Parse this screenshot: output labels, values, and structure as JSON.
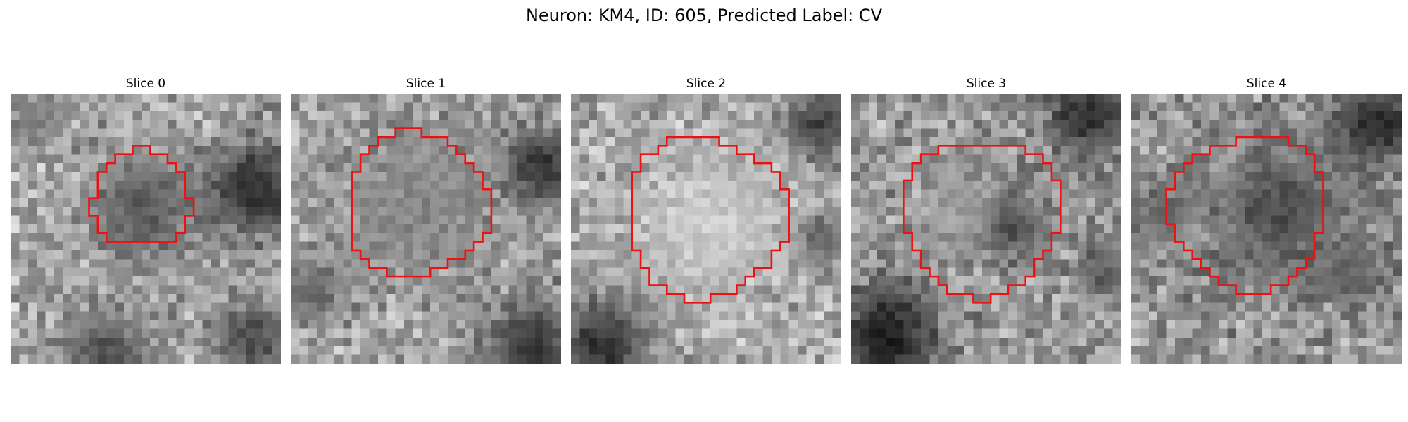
{
  "figure": {
    "title": "Neuron: KM4, ID: 605, Predicted Label: CV"
  },
  "panels": [
    {
      "title": "Slice 0",
      "image_description": "grayscale 31x31 microscopy patch, dark ring around a small cell, dark region at right",
      "outline_color": "#ee1111",
      "seed": 11,
      "outline_center": [
        15.0,
        12.2
      ],
      "outline_radius": 5.6,
      "bg_mean": 0.66,
      "blobs": [
        {
          "cx": 14.5,
          "cy": 12.5,
          "r": 5.8,
          "v": 0.35
        },
        {
          "cx": 27.5,
          "cy": 10.5,
          "r": 5.5,
          "v": 0.18
        },
        {
          "cx": 27.5,
          "cy": 27.5,
          "r": 4.5,
          "v": 0.3
        },
        {
          "cx": 10.5,
          "cy": 29.5,
          "r": 5.0,
          "v": 0.32
        },
        {
          "cx": 2.5,
          "cy": 2.5,
          "r": 3.0,
          "v": 0.5
        }
      ]
    },
    {
      "title": "Slice 1",
      "image_description": "grayscale patch, medium-gray circular cell, dark corners lower right and top right",
      "outline_color": "#ee1111",
      "seed": 23,
      "outline_center": [
        14.5,
        12.8
      ],
      "outline_radius": 8.2,
      "bg_mean": 0.64,
      "blobs": [
        {
          "cx": 14.5,
          "cy": 12.5,
          "r": 8.0,
          "v": 0.52
        },
        {
          "cx": 28.5,
          "cy": 8.0,
          "r": 4.5,
          "v": 0.2
        },
        {
          "cx": 27.5,
          "cy": 28.5,
          "r": 5.0,
          "v": 0.22
        },
        {
          "cx": 2.0,
          "cy": 22.0,
          "r": 3.5,
          "v": 0.4
        }
      ]
    },
    {
      "title": "Slice 2",
      "image_description": "grayscale patch, large bright circular cell with gray ring, dark lower-left corner",
      "outline_color": "#ee1111",
      "seed": 37,
      "outline_center": [
        15.5,
        14.2
      ],
      "outline_radius": 9.2,
      "bg_mean": 0.66,
      "blobs": [
        {
          "cx": 15.5,
          "cy": 14.5,
          "r": 8.5,
          "v": 0.8
        },
        {
          "cx": 3.0,
          "cy": 28.5,
          "r": 5.0,
          "v": 0.18
        },
        {
          "cx": 28.0,
          "cy": 3.0,
          "r": 4.0,
          "v": 0.25
        },
        {
          "cx": 28.5,
          "cy": 16.0,
          "r": 3.0,
          "v": 0.4
        }
      ]
    },
    {
      "title": "Slice 3",
      "image_description": "grayscale patch, cell with dark interior spot, very dark lower-left and upper-right corners",
      "outline_color": "#ee1111",
      "seed": 53,
      "outline_center": [
        15.0,
        14.0
      ],
      "outline_radius": 9.0,
      "bg_mean": 0.6,
      "blobs": [
        {
          "cx": 17.5,
          "cy": 14.5,
          "r": 3.5,
          "v": 0.25
        },
        {
          "cx": 3.5,
          "cy": 27.5,
          "r": 5.5,
          "v": 0.1
        },
        {
          "cx": 26.5,
          "cy": 2.0,
          "r": 4.5,
          "v": 0.18
        },
        {
          "cx": 28.5,
          "cy": 20.0,
          "r": 3.0,
          "v": 0.35
        },
        {
          "cx": 12.0,
          "cy": 13.0,
          "r": 4.0,
          "v": 0.62
        }
      ]
    },
    {
      "title": "Slice 4",
      "image_description": "grayscale patch, dark textured cell, dark upper-right corner, speckled surroundings",
      "outline_color": "#ee1111",
      "seed": 71,
      "outline_center": [
        13.5,
        13.6
      ],
      "outline_radius": 8.8,
      "bg_mean": 0.58,
      "blobs": [
        {
          "cx": 16.5,
          "cy": 13.0,
          "r": 7.0,
          "v": 0.3
        },
        {
          "cx": 27.5,
          "cy": 3.0,
          "r": 4.5,
          "v": 0.15
        },
        {
          "cx": 3.0,
          "cy": 13.0,
          "r": 3.5,
          "v": 0.4
        },
        {
          "cx": 25.0,
          "cy": 20.0,
          "r": 3.5,
          "v": 0.38
        }
      ]
    }
  ]
}
